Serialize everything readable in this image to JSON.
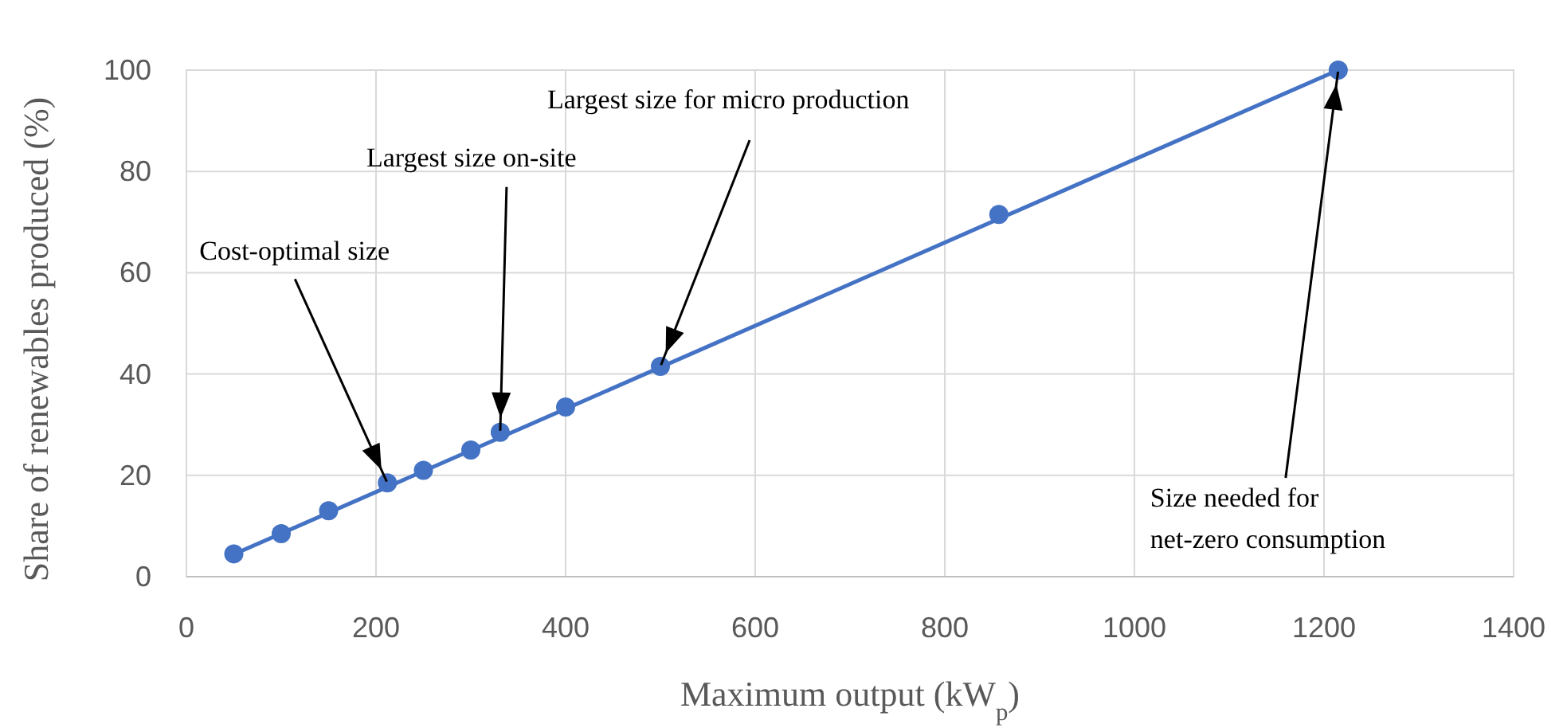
{
  "chart_data": {
    "type": "scatter",
    "xlabel": "Maximum output (kW$_{p}$)",
    "ylabel": "Share of renewables produced (%)",
    "series": [
      {
        "marker": "circle",
        "color": "#4472c4",
        "x": [
          50,
          100,
          150,
          212,
          250,
          300,
          331,
          400,
          500,
          857,
          1215
        ],
        "values": [
          4.5,
          8.5,
          13,
          18.5,
          21,
          25,
          28.5,
          33.5,
          41.5,
          71.5,
          100
        ]
      },
      {
        "type": "line",
        "marker": "none",
        "color": "#4472c4",
        "x": [
          45,
          1215
        ],
        "values": [
          4,
          100
        ]
      }
    ],
    "xlim": [
      0,
      1400
    ],
    "ylim": [
      0,
      100
    ],
    "xticks": [
      0,
      200,
      400,
      600,
      800,
      1000,
      1200,
      1400
    ],
    "yticks": [
      0,
      20,
      40,
      60,
      80,
      100
    ],
    "grid": true,
    "line_style": "solid",
    "annotations": [
      {
        "text": "Cost-optimal size",
        "x": 212,
        "y": 18.5
      },
      {
        "text": "Largest size on-site",
        "x": 331,
        "y": 28.5
      },
      {
        "text": "Largest size for micro production",
        "x": 500,
        "y": 41.5
      },
      {
        "text": "Size needed for net-zero consumption",
        "x": 1215,
        "y": 100
      }
    ]
  }
}
